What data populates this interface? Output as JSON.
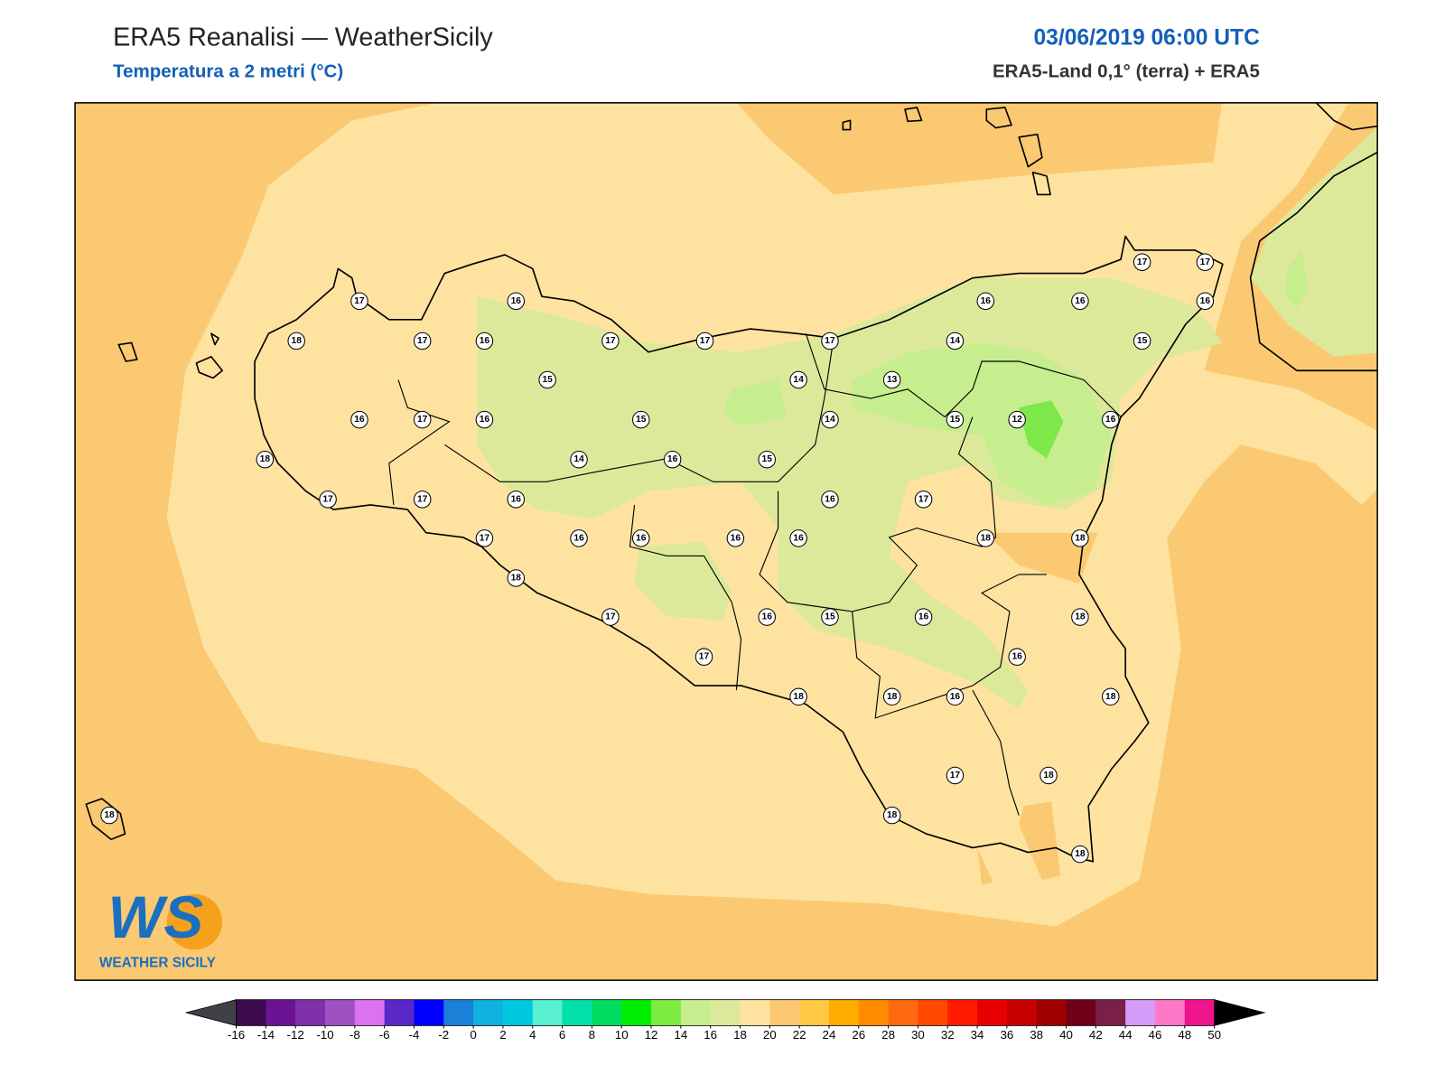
{
  "header": {
    "title": "ERA5 Reanalisi — WeatherSicily",
    "subtitle": "Temperatura a 2 metri (°C)",
    "datetime": "03/06/2019 06:00 UTC",
    "source": "ERA5-Land 0,1° (terra) + ERA5"
  },
  "map": {
    "stations": [
      17,
      18,
      17,
      16,
      16,
      17,
      17,
      15,
      16,
      17,
      16,
      15,
      14,
      18,
      17,
      17,
      16,
      17,
      16,
      16,
      18,
      17,
      17,
      16,
      16,
      15,
      14,
      17,
      14,
      16,
      16,
      16,
      15,
      18,
      13,
      14,
      16,
      15,
      12,
      17,
      18,
      16,
      18,
      16,
      16,
      16,
      17,
      17,
      16,
      15,
      16,
      18,
      18,
      18,
      18,
      17,
      18,
      18,
      18
    ]
  },
  "logo": {
    "mark": "WS",
    "name": "WEATHER SICILY"
  },
  "colorbar": {
    "ticks": [
      -16,
      -14,
      -12,
      -10,
      -8,
      -6,
      -4,
      -2,
      0,
      2,
      4,
      6,
      8,
      10,
      12,
      14,
      16,
      18,
      20,
      22,
      24,
      26,
      28,
      30,
      32,
      34,
      36,
      38,
      40,
      42,
      44,
      46,
      48,
      50
    ],
    "colors": [
      "#3b0a4f",
      "#6a1494",
      "#8030a8",
      "#a050c0",
      "#dd72ee",
      "#5a28c8",
      "#0000ff",
      "#1a80d8",
      "#10b0e0",
      "#00c8e0",
      "#58f0d0",
      "#00e0a8",
      "#00dc60",
      "#00ec00",
      "#7cec40",
      "#c6ee8e",
      "#dde99a",
      "#fee3a0",
      "#fcc872",
      "#ffc845",
      "#ffac00",
      "#ff8c00",
      "#ff6a10",
      "#ff4800",
      "#ff1a00",
      "#e80000",
      "#c80000",
      "#a00000",
      "#700018",
      "#7a2048",
      "#d49cf8",
      "#ff78c8",
      "#f0148c",
      "#808080",
      "#404040"
    ],
    "under_color": "#404048",
    "over_color": "#000000"
  }
}
